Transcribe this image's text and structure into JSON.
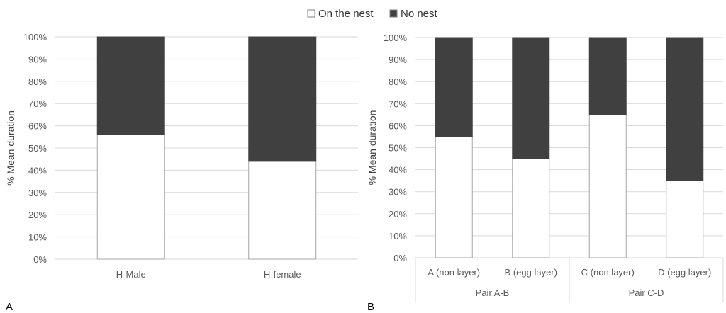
{
  "legend": {
    "position": "top-center",
    "items": [
      {
        "label": "On the nest",
        "color": "#ffffff"
      },
      {
        "label": "No nest",
        "color": "#404040"
      }
    ]
  },
  "panel_labels": [
    "A",
    "B"
  ],
  "chart_data": [
    {
      "type": "bar",
      "stacked": true,
      "percent_stacked": true,
      "panel": "A",
      "title": "",
      "xlabel": "",
      "ylabel": "% Mean duration",
      "ylim": [
        0,
        100
      ],
      "y_ticks": [
        "0%",
        "10%",
        "20%",
        "30%",
        "40%",
        "50%",
        "60%",
        "70%",
        "80%",
        "90%",
        "100%"
      ],
      "grid": true,
      "categories": [
        "H-Male",
        "H-female"
      ],
      "series": [
        {
          "name": "On the nest",
          "color": "#ffffff",
          "values": [
            56,
            44
          ]
        },
        {
          "name": "No nest",
          "color": "#404040",
          "values": [
            44,
            56
          ]
        }
      ]
    },
    {
      "type": "bar",
      "stacked": true,
      "percent_stacked": true,
      "panel": "B",
      "title": "",
      "xlabel": "",
      "ylabel": "% Mean duration",
      "ylim": [
        0,
        100
      ],
      "y_ticks": [
        "0%",
        "10%",
        "20%",
        "30%",
        "40%",
        "50%",
        "60%",
        "70%",
        "80%",
        "90%",
        "100%"
      ],
      "grid": true,
      "categories": [
        "A (non layer)",
        "B (egg layer)",
        "C (non layer)",
        "D (egg layer)"
      ],
      "groups": [
        {
          "label": "Pair A-B",
          "count": 2
        },
        {
          "label": "Pair C-D",
          "count": 2
        }
      ],
      "series": [
        {
          "name": "On the nest",
          "color": "#ffffff",
          "values": [
            55,
            45,
            65,
            35
          ]
        },
        {
          "name": "No nest",
          "color": "#404040",
          "values": [
            45,
            55,
            35,
            65
          ]
        }
      ]
    }
  ]
}
